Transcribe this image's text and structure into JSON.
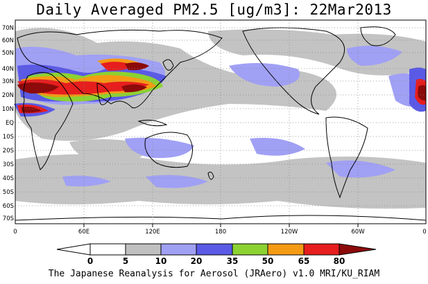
{
  "title": "Daily Averaged PM2.5 [ug/m3]: 22Mar2013",
  "footer": "The Japanese Reanalysis for Aerosol (JRAero) v1.0 MRI/KU_RIAM",
  "lat_labels": [
    "70N",
    "60N",
    "50N",
    "40N",
    "30N",
    "20N",
    "10N",
    "EQ",
    "10S",
    "20S",
    "30S",
    "40S",
    "50S",
    "60S",
    "70S"
  ],
  "lon_labels": [
    "0",
    "60E",
    "120E",
    "180",
    "120W",
    "60W",
    "0"
  ],
  "colorbar": {
    "levels": [
      "0",
      "5",
      "10",
      "20",
      "35",
      "50",
      "65",
      "80"
    ],
    "colors": [
      "#ffffff",
      "#c0c0c0",
      "#a0a0f5",
      "#5a5ae6",
      "#8cd232",
      "#f59a14",
      "#e61e1e",
      "#8c0a0a"
    ]
  }
}
